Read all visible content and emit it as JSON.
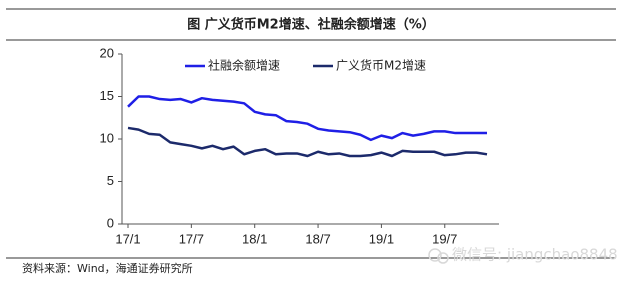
{
  "chart_data": {
    "type": "line",
    "title": "图  广义货币M2增速、社融余额增速（%）",
    "source": "资料来源：Wind，海通证券研究所",
    "watermark": "微信号: jiangchao8848",
    "categories": [
      "17/1",
      null,
      null,
      null,
      null,
      null,
      "17/7",
      null,
      null,
      null,
      null,
      null,
      "18/1",
      null,
      null,
      null,
      null,
      null,
      "18/7",
      null,
      null,
      null,
      null,
      null,
      "19/1",
      null,
      null,
      null,
      null,
      null,
      "19/7",
      null,
      null,
      null,
      null
    ],
    "series": [
      {
        "name": "社融余额增速",
        "color": "#1f1fe6",
        "values": [
          13.8,
          15.0,
          15.0,
          14.7,
          14.6,
          14.7,
          14.3,
          14.8,
          14.6,
          14.5,
          14.4,
          14.2,
          13.2,
          12.9,
          12.8,
          12.1,
          12.0,
          11.8,
          11.2,
          11.0,
          10.9,
          10.8,
          10.5,
          9.9,
          10.4,
          10.1,
          10.7,
          10.4,
          10.6,
          10.9,
          10.9,
          10.7,
          10.7,
          10.7,
          10.7
        ]
      },
      {
        "name": "广义货币M2增速",
        "color": "#1c2a6b",
        "values": [
          11.3,
          11.1,
          10.6,
          10.5,
          9.6,
          9.4,
          9.2,
          8.9,
          9.2,
          8.8,
          9.1,
          8.2,
          8.6,
          8.8,
          8.2,
          8.3,
          8.3,
          8.0,
          8.5,
          8.2,
          8.3,
          8.0,
          8.0,
          8.1,
          8.4,
          8.0,
          8.6,
          8.5,
          8.5,
          8.5,
          8.1,
          8.2,
          8.4,
          8.4,
          8.2
        ]
      }
    ],
    "ylim": [
      0,
      20
    ],
    "yticks": [
      0,
      5,
      10,
      15,
      20
    ],
    "grid": false
  }
}
